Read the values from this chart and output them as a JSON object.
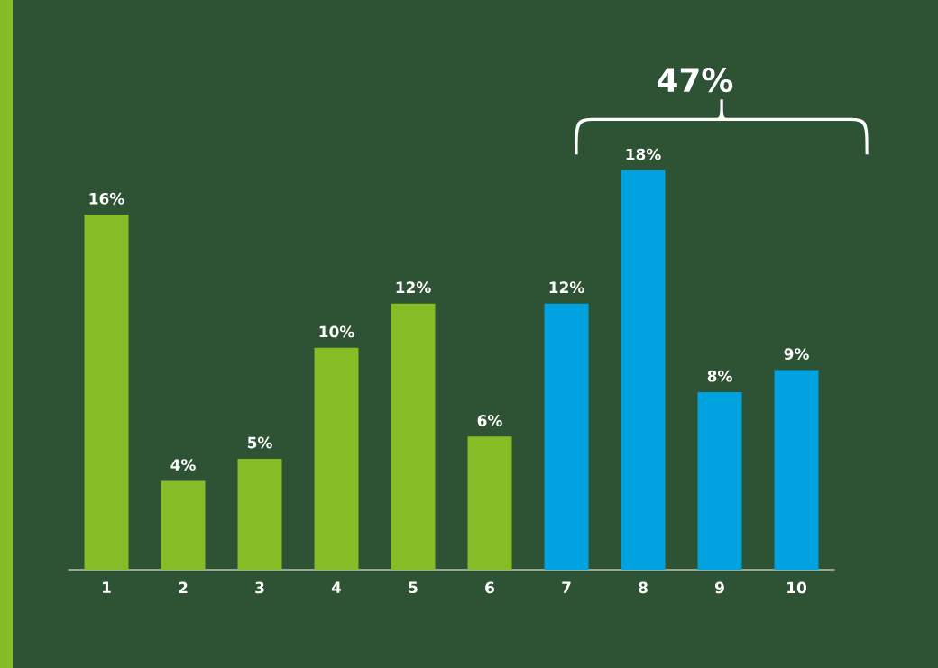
{
  "chart_data": {
    "type": "bar",
    "categories": [
      "1",
      "2",
      "3",
      "4",
      "5",
      "6",
      "7",
      "8",
      "9",
      "10"
    ],
    "values": [
      16,
      4,
      5,
      10,
      12,
      6,
      12,
      18,
      8,
      9
    ],
    "colors": [
      "#86bc25",
      "#86bc25",
      "#86bc25",
      "#86bc25",
      "#86bc25",
      "#86bc25",
      "#00a3e0",
      "#00a3e0",
      "#00a3e0",
      "#00a3e0"
    ],
    "value_labels": [
      "16%",
      "4%",
      "5%",
      "10%",
      "12%",
      "6%",
      "12%",
      "18%",
      "8%",
      "9%"
    ],
    "annotations": [
      "47%"
    ]
  }
}
